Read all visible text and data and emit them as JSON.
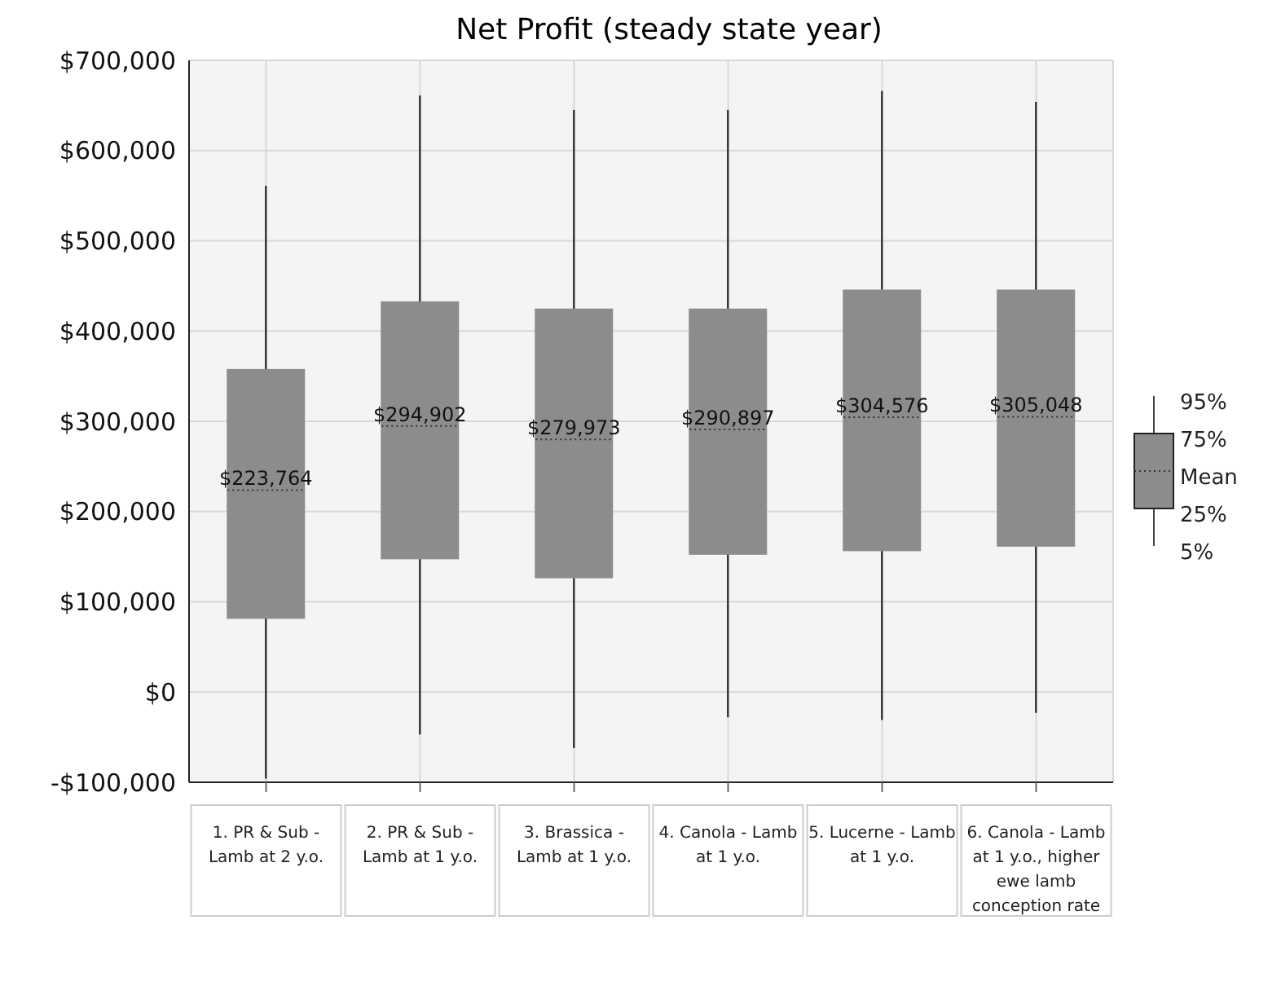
{
  "chart_data": {
    "type": "box",
    "title": "Net Profit (steady state year)",
    "categories": [
      "1. PR & Sub - Lamb at 2 y.o.",
      "2. PR & Sub - Lamb at 1 y.o.",
      "3. Brassica - Lamb at 1 y.o.",
      "4. Canola - Lamb at 1 y.o.",
      "5. Lucerne - Lamb at 1 y.o.",
      "6. Canola - Lamb at 1 y.o., higher ewe lamb conception rate"
    ],
    "boxes": [
      {
        "low": -96000,
        "q1": 82000,
        "q3": 357000,
        "high": 561000,
        "mean": 223764
      },
      {
        "low": -47000,
        "q1": 148000,
        "q3": 432000,
        "high": 661000,
        "mean": 294902
      },
      {
        "low": -62000,
        "q1": 127000,
        "q3": 424000,
        "high": 645000,
        "mean": 279973
      },
      {
        "low": -28000,
        "q1": 153000,
        "q3": 424000,
        "high": 645000,
        "mean": 290897
      },
      {
        "low": -31000,
        "q1": 157000,
        "q3": 445000,
        "high": 666000,
        "mean": 304576
      },
      {
        "low": -23000,
        "q1": 162000,
        "q3": 445000,
        "high": 654000,
        "mean": 305048
      }
    ],
    "value_labels": [
      "$223,764",
      "$294,902",
      "$279,973",
      "$290,897",
      "$304,576",
      "$305,048"
    ],
    "color": "#8c8c8c",
    "ylim": [
      -100000,
      700000
    ],
    "yticks": [
      {
        "value": -100000,
        "label": "-$100,000"
      },
      {
        "value": 0,
        "label": "$0"
      },
      {
        "value": 100000,
        "label": "$100,000"
      },
      {
        "value": 200000,
        "label": "$200,000"
      },
      {
        "value": 300000,
        "label": "$300,000"
      },
      {
        "value": 400000,
        "label": "$400,000"
      },
      {
        "value": 500000,
        "label": "$500,000"
      },
      {
        "value": 600000,
        "label": "$600,000"
      },
      {
        "value": 700000,
        "label": "$700,000"
      }
    ],
    "grid": true,
    "annotations": [
      "95%",
      "75%",
      "Mean",
      "25%",
      "5%"
    ]
  }
}
